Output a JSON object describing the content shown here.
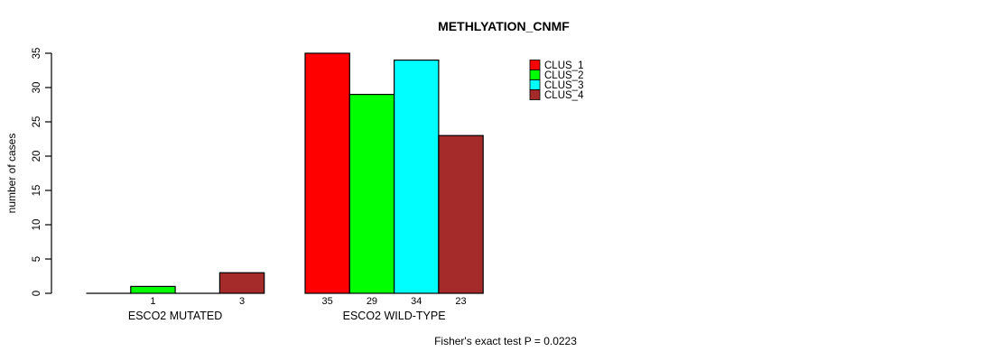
{
  "chart_data": {
    "type": "bar",
    "title": "METHLYATION_CNMF",
    "ylabel": "number of cases",
    "xlabel": "",
    "footnote": "Fisher's exact test P = 0.0223",
    "ylim": [
      0,
      35
    ],
    "yticks": [
      0,
      5,
      10,
      15,
      20,
      25,
      30,
      35
    ],
    "categories": [
      "ESCO2 MUTATED",
      "ESCO2 WILD-TYPE"
    ],
    "series": [
      {
        "name": "CLUS_1",
        "color": "#FF0000",
        "values": [
          0,
          35
        ]
      },
      {
        "name": "CLUS_2",
        "color": "#00FF00",
        "values": [
          1,
          29
        ]
      },
      {
        "name": "CLUS_3",
        "color": "#00FFFF",
        "values": [
          0,
          34
        ]
      },
      {
        "name": "CLUS_4",
        "color": "#A52A2A",
        "values": [
          3,
          23
        ]
      }
    ],
    "legend": {
      "position": "top-right"
    },
    "value_labels": "shown under each non-zero bar",
    "axis_color": "#000000",
    "bar_border_color": "#000000",
    "background": "#FFFFFF",
    "grid": false
  }
}
